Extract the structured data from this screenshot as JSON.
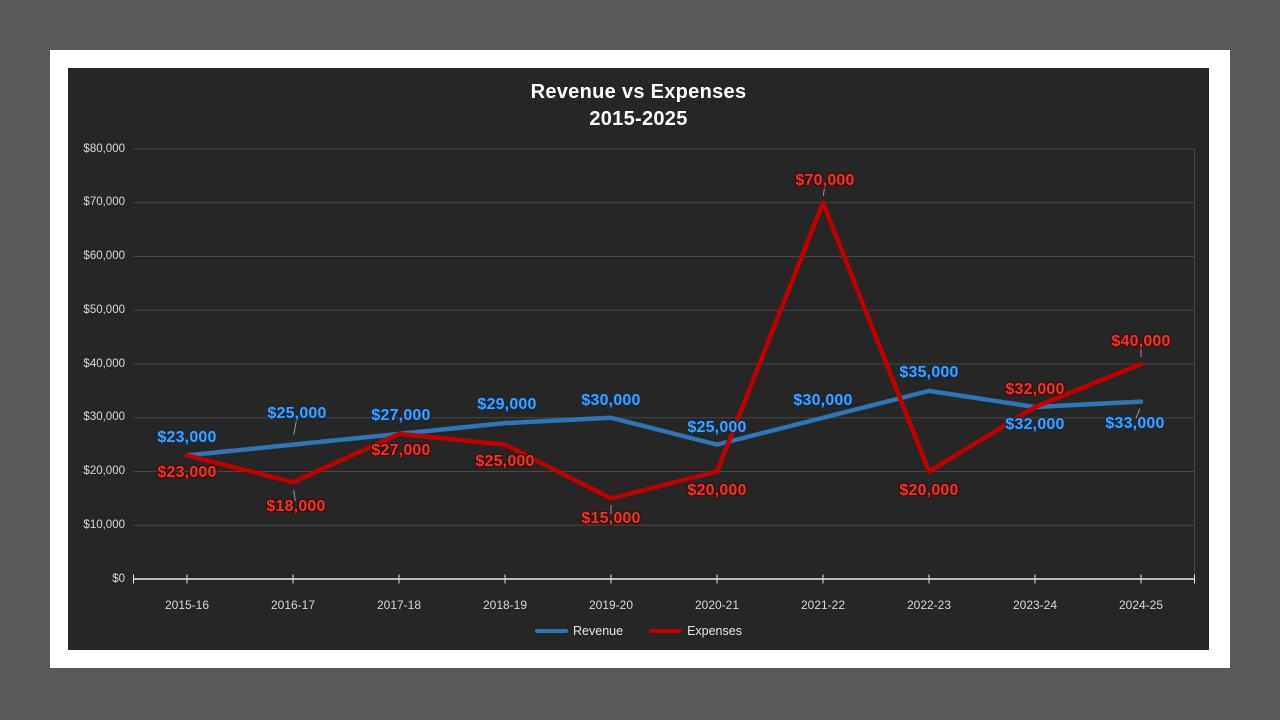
{
  "colors": {
    "desktop": "#595959",
    "slide": "#ffffff",
    "chart_bg": "#262626",
    "gridline": "#474747",
    "axis": "#e8e8e8",
    "leader": "#9a9a9a"
  },
  "title": {
    "line1": "Revenue vs Expenses",
    "line2": "2015-2025"
  },
  "chart_data": {
    "type": "line",
    "title": "Revenue vs Expenses 2015-2025",
    "categories": [
      "2015-16",
      "2016-17",
      "2017-18",
      "2018-19",
      "2019-20",
      "2020-21",
      "2021-22",
      "2022-23",
      "2023-24",
      "2024-25"
    ],
    "series": [
      {
        "name": "Revenue",
        "color": "#2e75b6",
        "values": [
          23000,
          25000,
          27000,
          29000,
          30000,
          25000,
          30000,
          35000,
          32000,
          33000
        ],
        "labels": [
          "$23,000",
          "$25,000",
          "$27,000",
          "$29,000",
          "$30,000",
          "$25,000",
          "$30,000",
          "$35,000",
          "$32,000",
          "$33,000"
        ],
        "label_color": "#47a0f2",
        "label_outline": "#0d2c50"
      },
      {
        "name": "Expenses",
        "color": "#c00000",
        "values": [
          23000,
          18000,
          27000,
          25000,
          15000,
          20000,
          70000,
          20000,
          32000,
          40000
        ],
        "labels": [
          "$23,000",
          "$18,000",
          "$27,000",
          "$25,000",
          "$15,000",
          "$20,000",
          "$70,000",
          "$20,000",
          "$32,000",
          "$40,000"
        ],
        "label_color": "#e7382d",
        "label_outline": "#420a0a"
      }
    ],
    "y_ticks": [
      "$0",
      "$10,000",
      "$20,000",
      "$30,000",
      "$40,000",
      "$50,000",
      "$60,000",
      "$70,000",
      "$80,000"
    ],
    "y_tick_step": 10000,
    "ylim": [
      0,
      80000
    ],
    "xlabel": "",
    "ylabel": "",
    "grid": "horizontal",
    "legend_position": "bottom"
  }
}
